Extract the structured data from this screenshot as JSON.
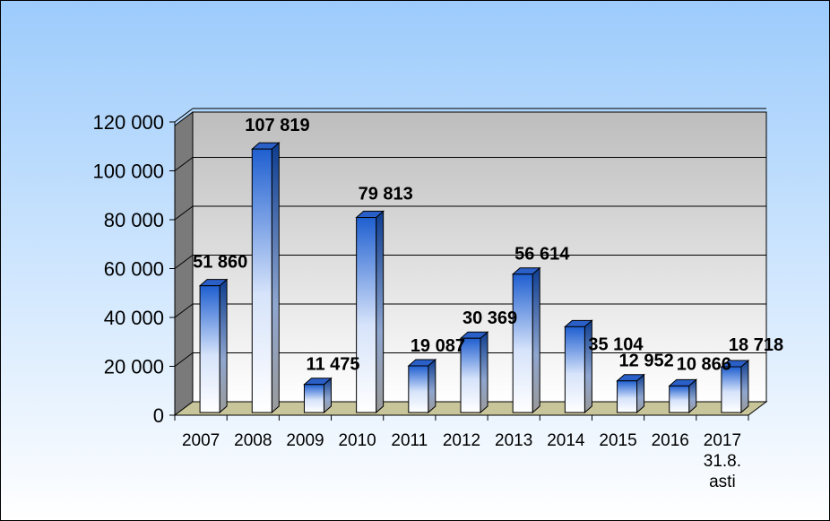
{
  "chart_data": {
    "type": "bar",
    "categories": [
      [
        "2007"
      ],
      [
        "2008"
      ],
      [
        "2009"
      ],
      [
        "2010"
      ],
      [
        "2011"
      ],
      [
        "2012"
      ],
      [
        "2013"
      ],
      [
        "2014"
      ],
      [
        "2015"
      ],
      [
        "2016"
      ],
      [
        "2017",
        "31.8.",
        "asti"
      ]
    ],
    "values": [
      51860,
      107819,
      11475,
      79813,
      19087,
      30369,
      56614,
      35104,
      12952,
      10866,
      18718
    ],
    "data_labels": [
      "51 860",
      "107 819",
      "11 475",
      "79 813",
      "19 087",
      "30 369",
      "56 614",
      "35 104",
      "12 952",
      "10 866",
      "18 718"
    ],
    "y_ticks": [
      0,
      20000,
      40000,
      60000,
      80000,
      100000,
      120000
    ],
    "y_tick_labels": [
      "0",
      "20 000",
      "40 000",
      "60 000",
      "80 000",
      "100 000",
      "120 000"
    ],
    "ylim": [
      0,
      120000
    ],
    "grid": true,
    "legend": "none",
    "title": "",
    "xlabel": "",
    "ylabel": "",
    "colors": {
      "background_top": "#9ccbfc",
      "background_bottom": "#ffffff",
      "bar_top": "#1f5fd0",
      "bar_bottom": "#ffffff",
      "plot_wall_top": "#bdbdbd",
      "plot_wall_bottom": "#ffffff",
      "floor": "#c8c59a"
    }
  }
}
